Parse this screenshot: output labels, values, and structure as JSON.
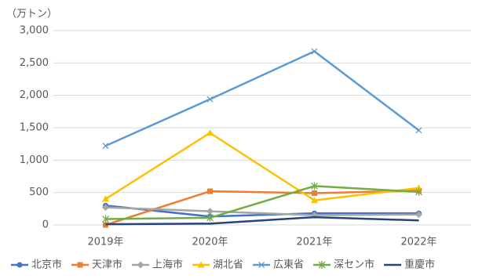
{
  "chart_data": {
    "type": "line",
    "y_label": "（万トン）",
    "categories": [
      "2019年",
      "2020年",
      "2021年",
      "2022年"
    ],
    "ylim": [
      0,
      3000
    ],
    "yticks": [
      0,
      500,
      {
        "value": 1000,
        "label": "1,000"
      },
      {
        "value": 1500,
        "label": "1,500"
      },
      {
        "value": 2000,
        "label": "2,000"
      },
      {
        "value": 2500,
        "label": "2,500"
      },
      {
        "value": 3000,
        "label": "3,000"
      }
    ],
    "grid": true,
    "legend": "bottom",
    "series": [
      {
        "name": "北京市",
        "color": "#4472c4",
        "marker": "circle",
        "values": [
          300,
          130,
          180,
          180
        ]
      },
      {
        "name": "天津市",
        "color": "#ed7d31",
        "marker": "square",
        "values": [
          0,
          520,
          490,
          530
        ]
      },
      {
        "name": "上海市",
        "color": "#a5a5a5",
        "marker": "diamond",
        "values": [
          270,
          210,
          150,
          160
        ]
      },
      {
        "name": "湖北省",
        "color": "#ffc000",
        "marker": "triangle",
        "values": [
          400,
          1420,
          380,
          570
        ]
      },
      {
        "name": "広東省",
        "color": "#5b9bd5",
        "marker": "x",
        "values": [
          1220,
          1940,
          2680,
          1460
        ]
      },
      {
        "name": "深セン市",
        "color": "#70ad47",
        "marker": "star",
        "values": [
          90,
          110,
          600,
          510
        ]
      },
      {
        "name": "重慶市",
        "color": "#264478",
        "marker": "none",
        "values": [
          10,
          20,
          120,
          70
        ]
      }
    ]
  }
}
